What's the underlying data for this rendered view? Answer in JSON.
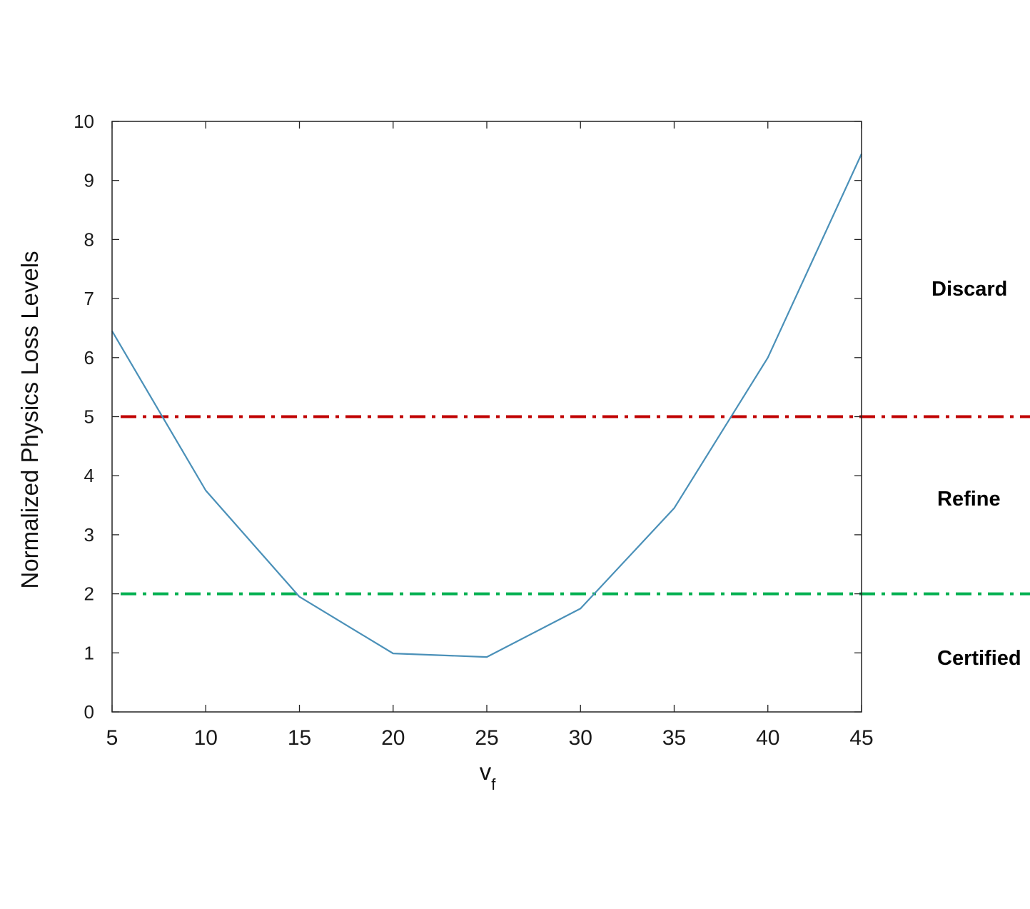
{
  "chart_data": {
    "type": "line",
    "title": "",
    "xlabel": "v",
    "xlabel_subscript": "f",
    "ylabel": "Normalized Physics Loss Levels",
    "xlim": [
      5,
      45
    ],
    "ylim": [
      0,
      10
    ],
    "xticks": [
      "5",
      "10",
      "15",
      "20",
      "25",
      "30",
      "35",
      "40",
      "45"
    ],
    "yticks": [
      "0",
      "1",
      "2",
      "3",
      "4",
      "5",
      "6",
      "7",
      "8",
      "9",
      "10"
    ],
    "grid": false,
    "series": [
      {
        "color": "#4a90b8",
        "x": [
          5,
          10,
          15,
          20,
          25,
          30,
          35,
          40,
          45
        ],
        "y": [
          6.45,
          3.75,
          1.95,
          0.99,
          0.93,
          1.75,
          3.45,
          6.0,
          9.45
        ]
      }
    ],
    "thresholds": [
      {
        "value": 5,
        "color": "#c00000",
        "style": "dash-dot"
      },
      {
        "value": 2,
        "color": "#00b050",
        "style": "dash-dot"
      }
    ],
    "zone_labels": [
      "Discard",
      "Refine",
      "Certified"
    ]
  }
}
